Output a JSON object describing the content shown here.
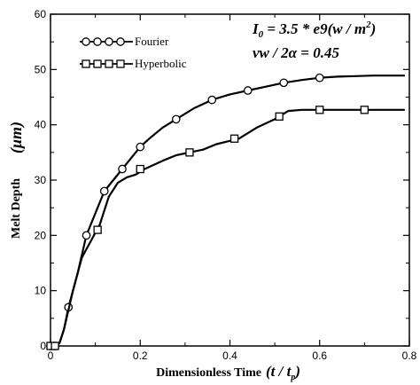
{
  "chart_data": {
    "type": "line",
    "title": "",
    "xlabel": "Dimensionless Time",
    "xlabel_math": "(t / t",
    "xlabel_sub": "p",
    "xlabel_close": ")",
    "ylabel": "Melt Depth",
    "ylabel_unit": "(μm)",
    "xlim": [
      0,
      0.8
    ],
    "ylim": [
      0,
      60
    ],
    "xticks": [
      0,
      0.2,
      0.4,
      0.6,
      0.8
    ],
    "xtick_labels": [
      "0",
      "0.2",
      "0.4",
      "0.6",
      "0.8"
    ],
    "yticks": [
      0,
      10,
      20,
      30,
      40,
      50,
      60
    ],
    "ytick_labels": [
      "0",
      "10",
      "20",
      "30",
      "40",
      "50",
      "60"
    ],
    "grid": false,
    "legend_position": "top-left",
    "annotations": {
      "line1_a": "I",
      "line1_sub": "0",
      "line1_b": " = 3.5 * e9(w / m",
      "line1_sup": "2",
      "line1_c": ")",
      "line2": "vw / 2α = 0.45"
    },
    "series": [
      {
        "name": "Fourier",
        "marker": "circle",
        "x": [
          0,
          0.01,
          0.02,
          0.03,
          0.04,
          0.06,
          0.08,
          0.1,
          0.12,
          0.14,
          0.16,
          0.18,
          0.2,
          0.22,
          0.25,
          0.28,
          0.32,
          0.36,
          0.4,
          0.44,
          0.48,
          0.52,
          0.56,
          0.6,
          0.64,
          0.68,
          0.72,
          0.76,
          0.79
        ],
        "y": [
          0,
          0,
          0.5,
          3,
          7,
          13,
          20,
          24,
          28,
          30,
          32,
          34,
          36,
          37.5,
          39.5,
          41,
          43,
          44.5,
          45.5,
          46.2,
          46.9,
          47.6,
          48.1,
          48.5,
          48.7,
          48.8,
          48.9,
          48.9,
          48.9
        ],
        "marker_x": [
          0,
          0.01,
          0.04,
          0.08,
          0.12,
          0.16,
          0.2,
          0.28,
          0.36,
          0.44,
          0.52,
          0.6
        ],
        "marker_y": [
          0,
          0,
          7,
          20,
          28,
          32,
          36,
          41,
          44.5,
          46.2,
          47.6,
          48.5
        ]
      },
      {
        "name": "Hyperbolic",
        "marker": "square",
        "x": [
          0,
          0.01,
          0.02,
          0.03,
          0.05,
          0.07,
          0.09,
          0.11,
          0.13,
          0.15,
          0.17,
          0.19,
          0.21,
          0.25,
          0.28,
          0.31,
          0.34,
          0.37,
          0.42,
          0.46,
          0.5,
          0.53,
          0.56,
          0.6,
          0.7,
          0.79
        ],
        "y": [
          0,
          0,
          0.5,
          3,
          10,
          16,
          19,
          22,
          27,
          29.5,
          30.5,
          31,
          32,
          33.5,
          34.5,
          35,
          35.5,
          36.5,
          37.5,
          39.5,
          41,
          42.5,
          42.7,
          42.7,
          42.7,
          42.7
        ],
        "marker_x": [
          0,
          0.01,
          0.105,
          0.2,
          0.31,
          0.41,
          0.51,
          0.6,
          0.7
        ],
        "marker_y": [
          0,
          0,
          21,
          32,
          35,
          37.5,
          41.5,
          42.7,
          42.7
        ]
      }
    ]
  }
}
